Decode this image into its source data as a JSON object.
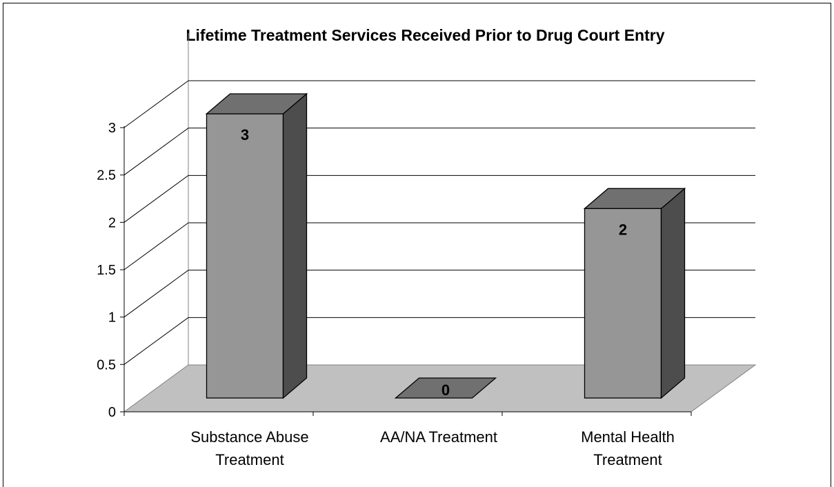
{
  "chart_data": {
    "type": "bar",
    "title": "Lifetime Treatment Services Received Prior to Drug Court Entry",
    "categories": [
      "Substance Abuse Treatment",
      "AA/NA Treatment",
      "Mental Health Treatment"
    ],
    "category_lines": [
      [
        "Substance Abuse",
        "Treatment"
      ],
      [
        "AA/NA Treatment"
      ],
      [
        "Mental Health",
        "Treatment"
      ]
    ],
    "values": [
      3,
      0,
      2
    ],
    "data_labels": [
      "3",
      "0",
      "2"
    ],
    "y_ticks": [
      "0",
      "0.5",
      "1",
      "1.5",
      "2",
      "2.5",
      "3"
    ],
    "ylim": [
      0,
      3
    ],
    "grid": true,
    "style": "3d-column",
    "colors": {
      "bar_front": "#969696",
      "bar_top": "#707070",
      "bar_side": "#4d4d4d",
      "floor": "#c0c0c0"
    }
  }
}
